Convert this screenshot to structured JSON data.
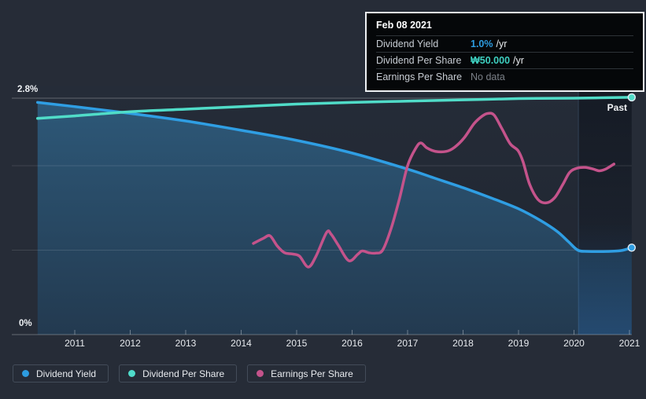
{
  "tooltip": {
    "title": "Feb 08 2021",
    "rows": [
      {
        "name": "dividend-yield",
        "label": "Dividend Yield",
        "value": "1.0%",
        "suffix": "/yr",
        "value_color": "#2d9ce0"
      },
      {
        "name": "dividend-per-share",
        "label": "Dividend Per Share",
        "value": "₩50.000",
        "suffix": "/yr",
        "value_color": "#3ed0c0"
      },
      {
        "name": "earnings-per-share",
        "label": "Earnings Per Share",
        "value": "No data",
        "suffix": "",
        "value_color": "#7b8088"
      }
    ]
  },
  "legend": [
    {
      "name": "dividend-yield",
      "label": "Dividend Yield",
      "color": "#2d9ce0"
    },
    {
      "name": "dividend-per-share",
      "label": "Dividend Per Share",
      "color": "#4fdccb"
    },
    {
      "name": "earnings-per-share",
      "label": "Earnings Per Share",
      "color": "#c4538b"
    }
  ],
  "annotations": {
    "past_label": "Past"
  },
  "colors": {
    "background": "#262c37",
    "plot_bg_top": "#252c38",
    "plot_bg_bottom": "#1f2530",
    "area_top": "#2d5878",
    "area_bottom": "#233a50",
    "dividend_yield_line": "#2f9ee3",
    "dividend_per_share_line": "#50dcc8",
    "earnings_per_share_line": "#c4538b",
    "gridline": "rgba(255,255,255,0.12)",
    "axis_text": "#e7eaee"
  },
  "chart_data": {
    "type": "line",
    "title": "Dividend history (past)",
    "x_ticks": [
      "2011",
      "2012",
      "2013",
      "2014",
      "2015",
      "2016",
      "2017",
      "2018",
      "2019",
      "2020",
      "2021"
    ],
    "x_range": [
      2010.33,
      2021.04
    ],
    "y_axis": {
      "top_label": "2.8%",
      "bottom_label": "0%",
      "min": 0,
      "top_value": 2.8,
      "unlabeled_gridlines": [
        1,
        2
      ]
    },
    "legend_position": "bottom-left",
    "highlight_band": {
      "from": 2020.08,
      "to": 2021.04,
      "label": "Past"
    },
    "note": "y values read off the 0%-2.8% axis scale",
    "series": [
      {
        "name": "Dividend Yield",
        "color": "#2f9ee3",
        "area": true,
        "endpoint_dot": true,
        "points": [
          [
            2010.33,
            2.75
          ],
          [
            2011.0,
            2.7
          ],
          [
            2012.0,
            2.62
          ],
          [
            2013.0,
            2.53
          ],
          [
            2014.0,
            2.42
          ],
          [
            2015.0,
            2.3
          ],
          [
            2016.0,
            2.15
          ],
          [
            2017.0,
            1.96
          ],
          [
            2017.5,
            1.85
          ],
          [
            2018.0,
            1.74
          ],
          [
            2018.5,
            1.62
          ],
          [
            2019.0,
            1.49
          ],
          [
            2019.4,
            1.35
          ],
          [
            2019.7,
            1.22
          ],
          [
            2019.9,
            1.1
          ],
          [
            2020.07,
            1.0
          ],
          [
            2020.25,
            0.985
          ],
          [
            2020.6,
            0.985
          ],
          [
            2020.85,
            0.995
          ],
          [
            2021.04,
            1.03
          ]
        ]
      },
      {
        "name": "Dividend Per Share",
        "color": "#50dcc8",
        "area": false,
        "endpoint_dot": true,
        "points": [
          [
            2010.33,
            2.56
          ],
          [
            2011.0,
            2.59
          ],
          [
            2012.0,
            2.64
          ],
          [
            2013.0,
            2.67
          ],
          [
            2014.0,
            2.7
          ],
          [
            2015.0,
            2.73
          ],
          [
            2016.0,
            2.75
          ],
          [
            2017.0,
            2.765
          ],
          [
            2018.0,
            2.78
          ],
          [
            2019.0,
            2.795
          ],
          [
            2020.0,
            2.8
          ],
          [
            2021.04,
            2.81
          ]
        ]
      },
      {
        "name": "Earnings Per Share",
        "color": "#c4538b",
        "area": false,
        "endpoint_dot": false,
        "points": [
          [
            2014.22,
            1.08
          ],
          [
            2014.4,
            1.14
          ],
          [
            2014.52,
            1.17
          ],
          [
            2014.65,
            1.05
          ],
          [
            2014.78,
            0.97
          ],
          [
            2014.92,
            0.955
          ],
          [
            2015.05,
            0.93
          ],
          [
            2015.21,
            0.8
          ],
          [
            2015.35,
            0.93
          ],
          [
            2015.54,
            1.21
          ],
          [
            2015.62,
            1.19
          ],
          [
            2015.75,
            1.06
          ],
          [
            2015.94,
            0.875
          ],
          [
            2016.1,
            0.95
          ],
          [
            2016.18,
            0.99
          ],
          [
            2016.3,
            0.97
          ],
          [
            2016.42,
            0.965
          ],
          [
            2016.55,
            1.0
          ],
          [
            2016.7,
            1.25
          ],
          [
            2016.85,
            1.6
          ],
          [
            2017.0,
            2.0
          ],
          [
            2017.15,
            2.21
          ],
          [
            2017.24,
            2.27
          ],
          [
            2017.35,
            2.21
          ],
          [
            2017.5,
            2.17
          ],
          [
            2017.7,
            2.17
          ],
          [
            2017.85,
            2.22
          ],
          [
            2018.02,
            2.33
          ],
          [
            2018.2,
            2.5
          ],
          [
            2018.35,
            2.59
          ],
          [
            2018.45,
            2.62
          ],
          [
            2018.56,
            2.6
          ],
          [
            2018.7,
            2.44
          ],
          [
            2018.85,
            2.26
          ],
          [
            2018.99,
            2.18
          ],
          [
            2019.08,
            2.05
          ],
          [
            2019.2,
            1.78
          ],
          [
            2019.35,
            1.6
          ],
          [
            2019.5,
            1.56
          ],
          [
            2019.65,
            1.62
          ],
          [
            2019.8,
            1.78
          ],
          [
            2019.92,
            1.92
          ],
          [
            2020.05,
            1.97
          ],
          [
            2020.2,
            1.98
          ],
          [
            2020.35,
            1.96
          ],
          [
            2020.45,
            1.94
          ],
          [
            2020.57,
            1.96
          ],
          [
            2020.72,
            2.02
          ]
        ]
      }
    ]
  }
}
